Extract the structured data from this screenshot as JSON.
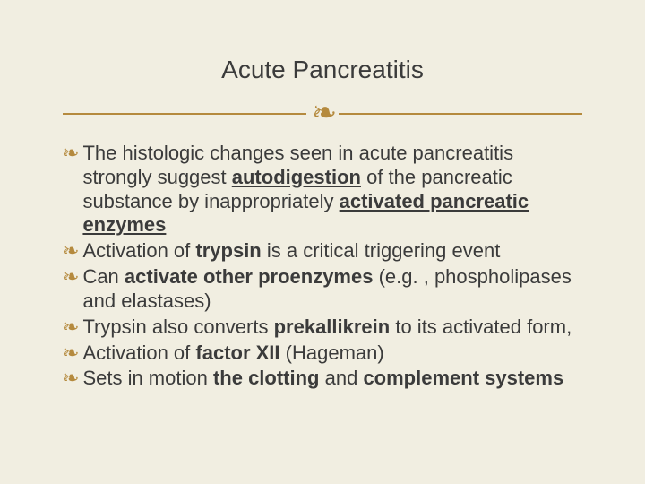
{
  "slide": {
    "title": "Acute Pancreatitis",
    "ornament_glyph": "❧",
    "bullet_glyph": "❧",
    "colors": {
      "background": "#f1eee1",
      "text": "#3b3b3b",
      "accent": "#b58a3e"
    },
    "typography": {
      "title_fontsize": 28,
      "body_fontsize": 22,
      "font_family": "Arial"
    },
    "items": [
      {
        "segments": [
          {
            "t": "The histologic changes seen in acute pancreatitis strongly suggest "
          },
          {
            "t": "autodigestion",
            "style": "ub"
          },
          {
            "t": " of the pancreatic substance by inappropriately "
          },
          {
            "t": "activated pancreatic enzymes",
            "style": "ub"
          }
        ]
      },
      {
        "segments": [
          {
            "t": "Activation of "
          },
          {
            "t": "trypsin",
            "style": "b"
          },
          {
            "t": " is a critical triggering event"
          }
        ]
      },
      {
        "segments": [
          {
            "t": "Can "
          },
          {
            "t": "activate other proenzymes",
            "style": "b"
          },
          {
            "t": " (e.g. , phospholipases and elastases)"
          }
        ]
      },
      {
        "segments": [
          {
            "t": "Trypsin also converts "
          },
          {
            "t": "prekallikrein",
            "style": "b"
          },
          {
            "t": " to its activated form,"
          }
        ]
      },
      {
        "segments": [
          {
            "t": "Activation of "
          },
          {
            "t": "factor XII",
            "style": "b"
          },
          {
            "t": " (Hageman)"
          }
        ]
      },
      {
        "segments": [
          {
            "t": "Sets in motion "
          },
          {
            "t": "the clotting",
            "style": "b"
          },
          {
            "t": " and "
          },
          {
            "t": "complement systems",
            "style": "b"
          }
        ]
      }
    ]
  }
}
